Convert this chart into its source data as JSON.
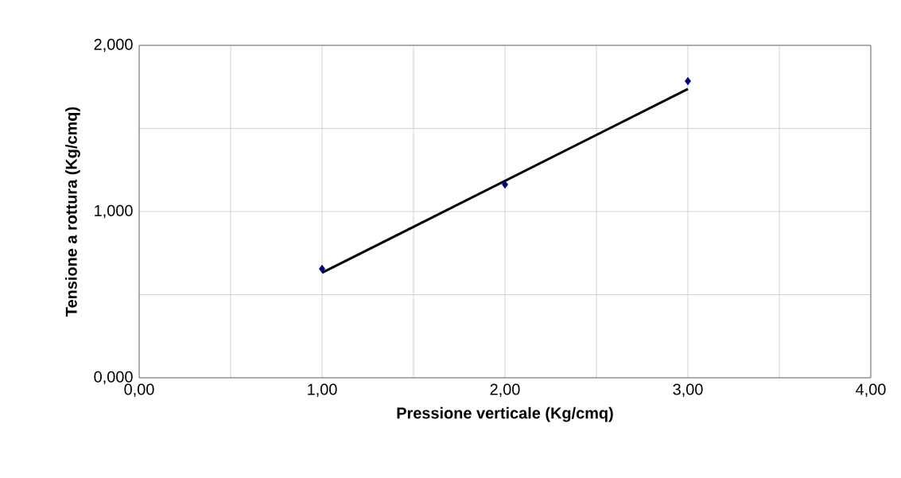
{
  "chart_data": {
    "type": "scatter",
    "xlabel": "Pressione verticale (Kg/cmq)",
    "ylabel": "Tensione a rottura (Kg/cmq)",
    "xlim": [
      0,
      4
    ],
    "ylim": [
      0,
      2
    ],
    "xticks": [
      {
        "value": 0,
        "label": "0,00"
      },
      {
        "value": 0.5,
        "label": null
      },
      {
        "value": 1,
        "label": "1,00"
      },
      {
        "value": 1.5,
        "label": null
      },
      {
        "value": 2,
        "label": "2,00"
      },
      {
        "value": 2.5,
        "label": null
      },
      {
        "value": 3,
        "label": "3,00"
      },
      {
        "value": 3.5,
        "label": null
      },
      {
        "value": 4,
        "label": "4,00"
      }
    ],
    "yticks": [
      {
        "value": 0,
        "label": "0,000"
      },
      {
        "value": 0.5,
        "label": null
      },
      {
        "value": 1,
        "label": "1,000"
      },
      {
        "value": 1.5,
        "label": null
      },
      {
        "value": 2,
        "label": "2,000"
      }
    ],
    "grid": true,
    "series": [
      {
        "marker": "diamond",
        "color": "#000080",
        "x": [
          1,
          2,
          3
        ],
        "values": [
          0.655,
          1.163,
          1.785
        ]
      },
      {
        "type": "line",
        "line_style": "solid",
        "color": "#000000",
        "x": [
          1,
          3
        ],
        "values": [
          0.632,
          1.737
        ]
      }
    ]
  }
}
